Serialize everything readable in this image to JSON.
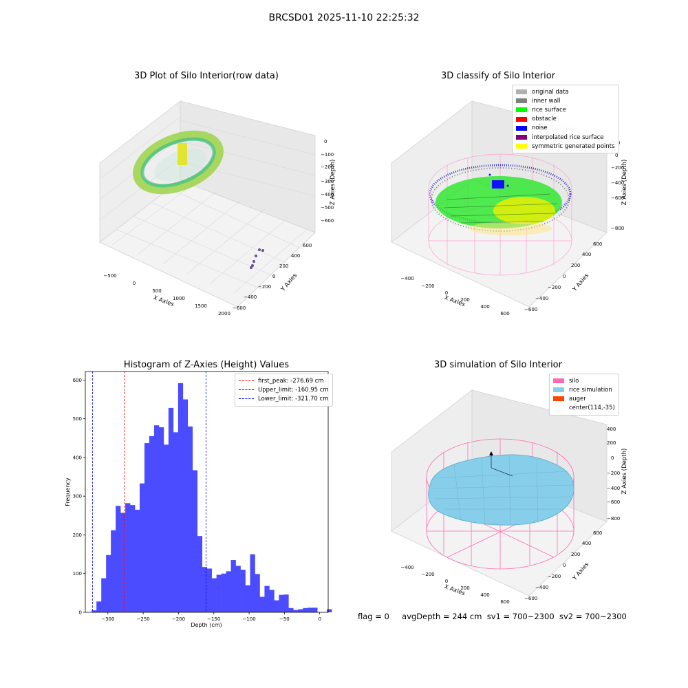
{
  "suptitle": "BRCSD01 2025-11-10 22:25:32",
  "footer": {
    "flag": "flag = 0",
    "avg_depth": "avgDepth = 244 cm",
    "sv1": "sv1 = 700~2300",
    "sv2": "sv2 = 700~2300"
  },
  "plot_raw": {
    "title": "3D Plot of Silo Interior(row data)",
    "xlabel": "X Axies",
    "ylabel": "Y Axies",
    "zlabel": "Z Axies (Depth)",
    "xticks": [
      "−500",
      "0",
      "500",
      "1000",
      "1500",
      "2000"
    ],
    "yticks": [
      "−600",
      "−400",
      "−200",
      "0",
      "200",
      "400",
      "600"
    ],
    "zticks": [
      "0",
      "−100",
      "−200",
      "−300",
      "−400",
      "−500",
      "−600"
    ]
  },
  "plot_classify": {
    "title": "3D classify of Silo Interior",
    "xlabel": "X Axies",
    "ylabel": "Y Axies",
    "zlabel": "Z Axies (Depth)",
    "xticks": [
      "−400",
      "−200",
      "0",
      "200",
      "400",
      "600"
    ],
    "yticks": [
      "−600",
      "−400",
      "−200",
      "0",
      "200",
      "400",
      "600"
    ],
    "zticks": [
      "200",
      "0",
      "−200",
      "−400",
      "−600",
      "−800"
    ],
    "legend": [
      {
        "label": "original data",
        "color": "#b0b0b0"
      },
      {
        "label": "inner wall",
        "color": "#808080"
      },
      {
        "label": "rice surface",
        "color": "#00ff00"
      },
      {
        "label": "obstacle",
        "color": "#ff0000"
      },
      {
        "label": "noise",
        "color": "#0000ff"
      },
      {
        "label": "interpolated rice surface",
        "color": "#800080"
      },
      {
        "label": "symmetric generated points",
        "color": "#ffff00"
      }
    ]
  },
  "plot_sim": {
    "title": "3D simulation of Silo Interior",
    "xlabel": "X Axies",
    "ylabel": "Y Axies",
    "zlabel": "Z Axies (Depth)",
    "xticks": [
      "−400",
      "−200",
      "0",
      "200",
      "400",
      "600"
    ],
    "yticks": [
      "−600",
      "−400",
      "−200",
      "0",
      "200",
      "400",
      "600"
    ],
    "zticks": [
      "400",
      "200",
      "0",
      "−200",
      "−400",
      "−600",
      "−800"
    ],
    "legend": [
      {
        "label": "silo",
        "color": "#ff69b4"
      },
      {
        "label": "rice simulation",
        "color": "#87ceeb"
      },
      {
        "label": "auger",
        "color": "#ff4500"
      },
      {
        "label": "center(114,-35)",
        "color": ""
      }
    ]
  },
  "chart_data": {
    "type": "bar",
    "title": "Histogram of Z-Axies (Height) Values",
    "xlabel": "Depth (cm)",
    "ylabel": "Frequency",
    "xlim": [
      -332,
      12
    ],
    "ylim": [
      0,
      622
    ],
    "bin_width": 6.8,
    "x_start": -323,
    "xticks": [
      -300,
      -250,
      -200,
      -150,
      -100,
      -50,
      0
    ],
    "xtick_labels": [
      "−300",
      "−250",
      "−200",
      "−150",
      "−100",
      "−50",
      "0"
    ],
    "yticks": [
      0,
      100,
      200,
      300,
      400,
      500,
      600
    ],
    "bar_color": "#4b4bff",
    "values": [
      5,
      28,
      88,
      148,
      212,
      275,
      257,
      282,
      277,
      265,
      333,
      437,
      455,
      483,
      478,
      433,
      528,
      465,
      592,
      550,
      480,
      367,
      197,
      117,
      113,
      88,
      97,
      100,
      106,
      135,
      120,
      110,
      70,
      150,
      99,
      40,
      68,
      58,
      31,
      45,
      46,
      11,
      6,
      8,
      11,
      12,
      12,
      0,
      0,
      8
    ],
    "vlines": [
      {
        "label": "first_peak: -276.69 cm",
        "x": -276.69,
        "color": "#ff0000"
      },
      {
        "label": "Upper_limit: -160.95 cm",
        "x": -160.95,
        "color": "#0000ff"
      },
      {
        "label": "Lower_limit: -321.70 cm",
        "x": -321.7,
        "color": "#0000ff"
      }
    ]
  }
}
